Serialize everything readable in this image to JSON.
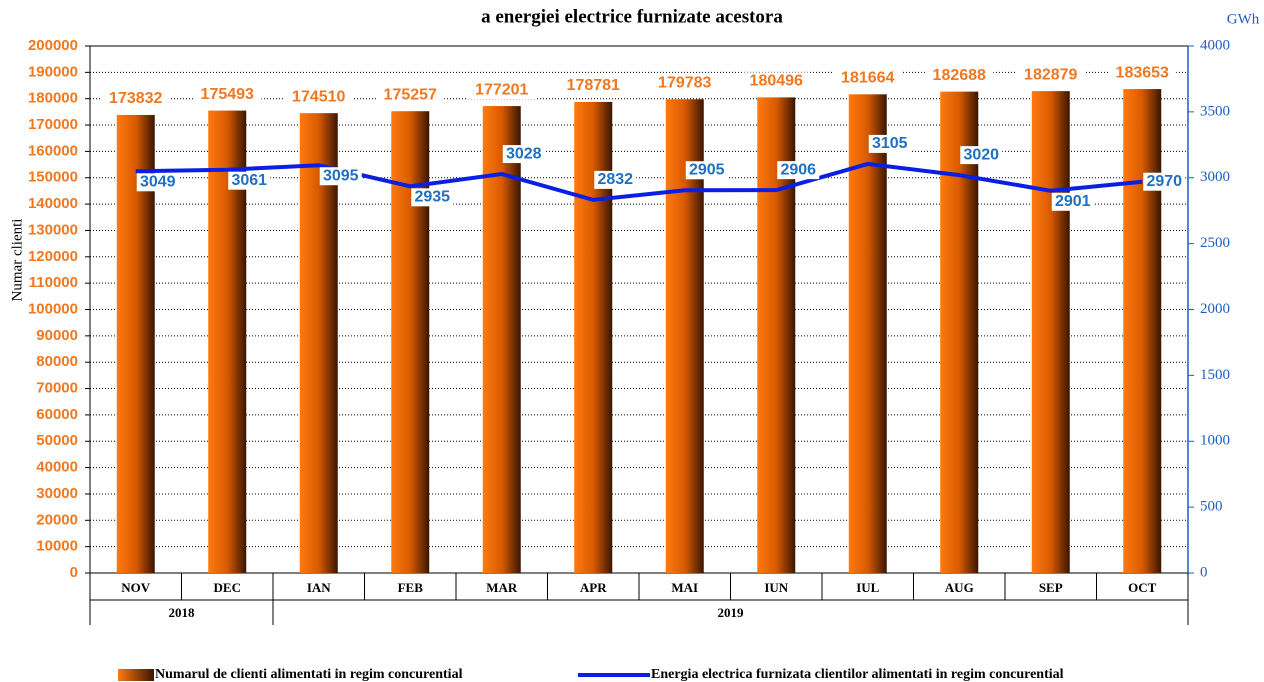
{
  "chart_data": {
    "type": "bar-line",
    "title": "a energiei electrice furnizate acestora",
    "y_label": "Numar clienti",
    "y2_label": "GWh",
    "categories": [
      "NOV",
      "DEC",
      "IAN",
      "FEB",
      "MAR",
      "APR",
      "MAI",
      "IUN",
      "IUL",
      "AUG",
      "SEP",
      "OCT"
    ],
    "years": [
      "2018",
      null,
      "2019",
      null,
      null,
      null,
      null,
      null,
      null,
      null,
      null,
      null
    ],
    "ylim": [
      0,
      200000
    ],
    "yticks": [
      0,
      10000,
      20000,
      30000,
      40000,
      50000,
      60000,
      70000,
      80000,
      90000,
      100000,
      110000,
      120000,
      130000,
      140000,
      150000,
      160000,
      170000,
      180000,
      190000,
      200000
    ],
    "y2lim": [
      0,
      4000
    ],
    "y2ticks": [
      0,
      500,
      1000,
      1500,
      2000,
      2500,
      3000,
      3500,
      4000
    ],
    "grid": true,
    "series": [
      {
        "name": "Numarul de clienti alimentati in regim concurential",
        "type": "bar",
        "color": "#f06a00",
        "values": [
          173832,
          175493,
          174510,
          175257,
          177201,
          178781,
          179783,
          180496,
          181664,
          182688,
          182879,
          183653
        ]
      },
      {
        "name": "Energia electrica furnizata clientilor alimentati in regim concurential",
        "type": "line",
        "axis": "y2",
        "color": "#0a1ee6",
        "values": [
          3049,
          3061,
          3095,
          2935,
          3028,
          2832,
          2905,
          2906,
          3105,
          3020,
          2901,
          2970
        ]
      }
    ]
  }
}
